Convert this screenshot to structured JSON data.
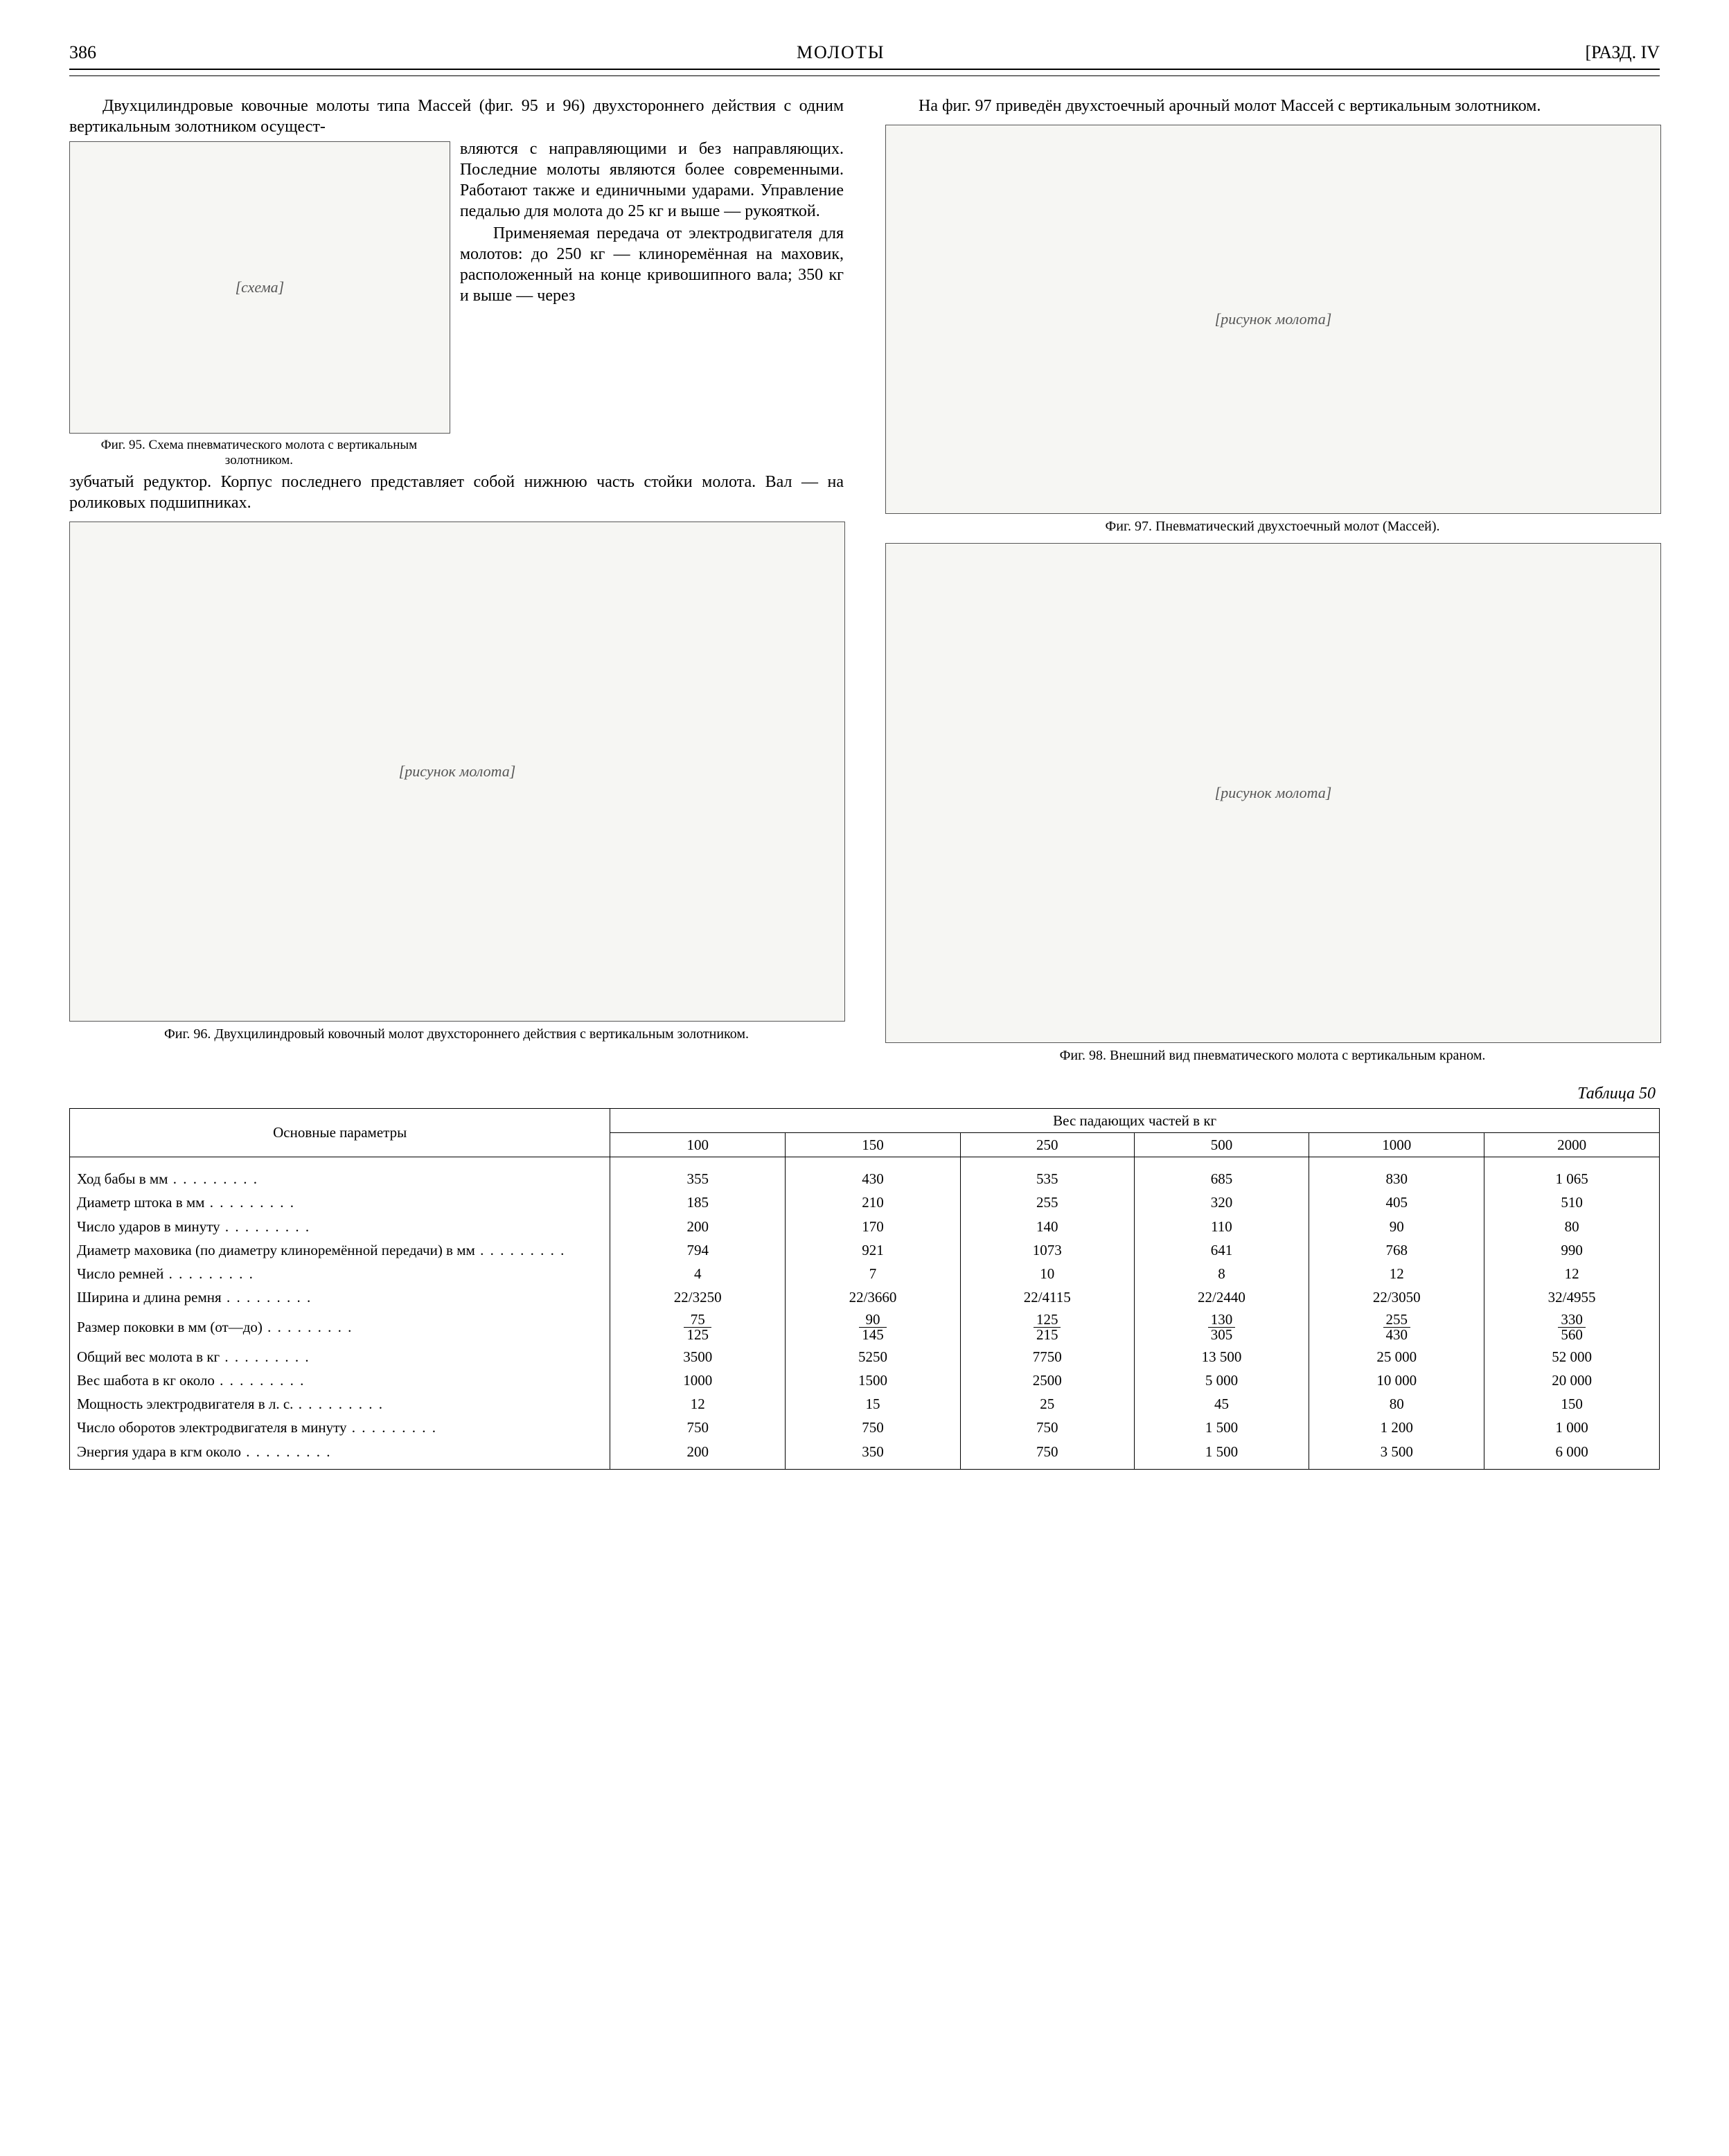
{
  "header": {
    "page_number": "386",
    "running_title": "МОЛОТЫ",
    "section": "[РАЗД. IV"
  },
  "text": {
    "p1a": "Двухцилиндровые ковочные молоты типа Массей (фиг. 95 и 96) двухстороннего действия с одним вертикальным золотником осущест-",
    "p1b": "вляются с направляющими и без направляющих. Последние молоты являются более современными. Работают также и единичными ударами. Управление педалью для молота до 25 кг и выше — рукояткой.",
    "p2": "Применяемая передача от электродвигателя для молотов: до 250 кг — клиноремённая на маховик, расположенный на конце кривошипного вала; 350 кг и выше — через",
    "p3": "зубчатый редуктор. Корпус последнего представляет собой нижнюю часть стойки молота. Вал — на роликовых подшипниках.",
    "p4": "На фиг. 97 приведён двухстоечный арочный молот Массей с вертикальным золотником."
  },
  "figures": {
    "f95": {
      "label": "[схема]",
      "caption": "Фиг. 95. Схема пневматического молота с вертикальным золотником."
    },
    "f96": {
      "label": "[рисунок молота]",
      "caption": "Фиг. 96. Двухцилиндровый ковочный молот двухстороннего действия с вертикальным золотником."
    },
    "f97": {
      "label": "[рисунок молота]",
      "caption": "Фиг. 97. Пневматический двухстоечный молот (Массей)."
    },
    "f98": {
      "label": "[рисунок молота]",
      "caption": "Фиг. 98. Внешний вид пневматического молота с вертикальным краном."
    }
  },
  "table": {
    "title": "Таблица 50",
    "col_header_main": "Основные параметры",
    "col_header_group": "Вес падающих частей в кг",
    "weight_cols": [
      "100",
      "150",
      "250",
      "500",
      "1000",
      "2000"
    ],
    "rows": [
      {
        "param": "Ход бабы в мм",
        "vals": [
          "355",
          "430",
          "535",
          "685",
          "830",
          "1 065"
        ]
      },
      {
        "param": "Диаметр штока в мм",
        "vals": [
          "185",
          "210",
          "255",
          "320",
          "405",
          "510"
        ]
      },
      {
        "param": "Число ударов в минуту",
        "vals": [
          "200",
          "170",
          "140",
          "110",
          "90",
          "80"
        ]
      },
      {
        "param": "Диаметр маховика (по диаметру клиноремённой передачи) в мм",
        "vals": [
          "794",
          "921",
          "1073",
          "641",
          "768",
          "990"
        ]
      },
      {
        "param": "Число ремней",
        "vals": [
          "4",
          "7",
          "10",
          "8",
          "12",
          "12"
        ]
      },
      {
        "param": "Ширина и длина ремня",
        "vals": [
          "22/3250",
          "22/3660",
          "22/4115",
          "22/2440",
          "22/3050",
          "32/4955"
        ]
      },
      {
        "param": "Размер поковки в мм (от—до)",
        "frac": true,
        "tops": [
          "75",
          "90",
          "125",
          "130",
          "255",
          "330"
        ],
        "bots": [
          "125",
          "145",
          "215",
          "305",
          "430",
          "560"
        ]
      },
      {
        "param": "Общий вес молота в кг",
        "vals": [
          "3500",
          "5250",
          "7750",
          "13 500",
          "25 000",
          "52 000"
        ]
      },
      {
        "param": "Вес шабота в кг около",
        "vals": [
          "1000",
          "1500",
          "2500",
          "5 000",
          "10 000",
          "20 000"
        ]
      },
      {
        "param": "Мощность электродвигателя в л. с.",
        "vals": [
          "12",
          "15",
          "25",
          "45",
          "80",
          "150"
        ]
      },
      {
        "param": "Число оборотов электродвигателя в минуту",
        "vals": [
          "750",
          "750",
          "750",
          "1 500",
          "1 200",
          "1 000"
        ]
      },
      {
        "param": "Энергия удара в кгм около",
        "vals": [
          "200",
          "350",
          "750",
          "1 500",
          "3 500",
          "6 000"
        ]
      }
    ]
  }
}
